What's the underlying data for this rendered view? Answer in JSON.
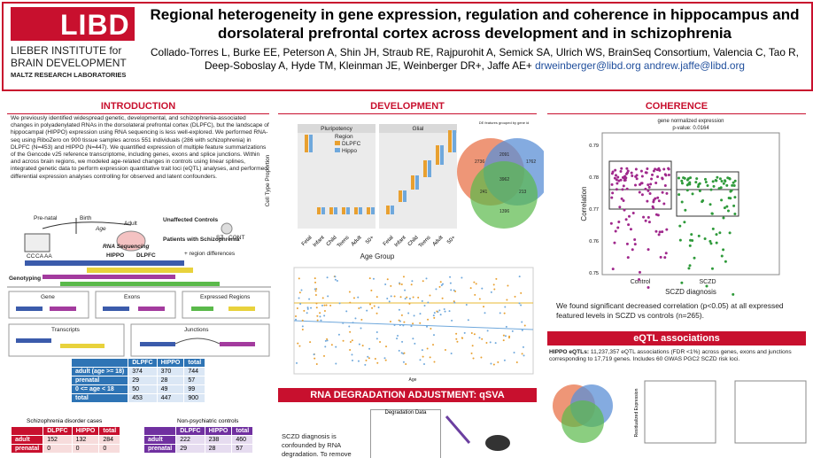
{
  "header": {
    "logo": {
      "mark": "LIBD",
      "line1": "LIEBER INSTITUTE for",
      "line2": "BRAIN DEVELOPMENT",
      "line3": "MALTZ RESEARCH LABORATORIES"
    },
    "title": "Regional heterogeneity in gene expression, regulation and coherence in hippocampus and dorsolateral prefrontal cortex across development and in schizophrenia",
    "authors": "Collado-Torres L, Burke EE, Peterson A, Shin JH, Straub RE, Rajpurohit A, Semick SA, Ulrich WS, BrainSeq Consortium, Valencia C, Tao R, Deep-Soboslay A, Hyde TM, Kleinman JE, Weinberger DR+, Jaffe AE+",
    "emails": "drweinberger@libd.org andrew.jaffe@libd.org"
  },
  "introduction": {
    "heading": "INTRODUCTION",
    "body": "We previously identified widespread genetic, developmental, and schizophrenia-associated changes in polyadenylated RNAs in the dorsolateral prefrontal cortex (DLPFC), but the landscape of hippocampal (HIPPO) expression using RNA sequencing is less well-explored. We performed RNA-seq using RiboZero on 900 tissue samples across 551 individuals (286 with schizophrenia) in DLPFC (N=453) and HIPPO (N=447). We quantified expression of multiple feature summarizations of the Gencode v25 reference transcriptome, including genes, exons and splice junctions. Within and across brain regions, we modeled age-related changes in controls using linear splines, integrated genetic data to perform expression quantitative trait loci (eQTL) analyses, and performed differential expression analyses controlling for observed and latent confounders.",
    "diagram": {
      "prenatal": "Pre-natal",
      "birth": "Birth",
      "age": "Age",
      "adult": "Adult",
      "hippo": "HIPPO",
      "dlpfc": "DLPFC",
      "controls": "Unaffected Controls",
      "patients": "Patients with Schizophrenia",
      "regions": "+ region differences",
      "rnaseq": "RNA Sequencing",
      "genotyping": "Genotyping",
      "genotypes": [
        "CC",
        "CA",
        "AA"
      ],
      "groups": [
        "SZ",
        "CONT"
      ],
      "features": [
        "Gene",
        "Exons",
        "Expressed Regions",
        "Transcripts",
        "Junctions"
      ]
    },
    "table": {
      "header": [
        "DLPFC",
        "HIPPO",
        "total"
      ],
      "rows": [
        [
          "adult (age >= 18)",
          "374",
          "370",
          "744"
        ],
        [
          "prenatal",
          "29",
          "28",
          "57"
        ],
        [
          "0 <= age < 18",
          "50",
          "49",
          "99"
        ],
        [
          "total",
          "453",
          "447",
          "900"
        ]
      ]
    },
    "cases_table": {
      "title": "Schizophrenia disorder cases",
      "header": [
        "DLPFC",
        "HIPPO",
        "total"
      ],
      "rows": [
        [
          "adult",
          "152",
          "132",
          "284"
        ],
        [
          "prenatal",
          "0",
          "0",
          "0"
        ]
      ]
    },
    "controls_table": {
      "title": "Non-psychiatric controls",
      "header": [
        "DLPFC",
        "HIPPO",
        "total"
      ],
      "rows": [
        [
          "adult",
          "222",
          "238",
          "460"
        ],
        [
          "prenatal",
          "29",
          "28",
          "57"
        ]
      ]
    }
  },
  "development": {
    "heading": "DEVELOPMENT",
    "panels": [
      "Pluripotency",
      "Glial"
    ],
    "legend_title": "Region",
    "legend": [
      "DLPFC",
      "Hippo"
    ],
    "ylabel": "Cell Type Proportion",
    "age_groups": [
      "Fetal",
      "Infant",
      "Child",
      "Teens",
      "Adult",
      "50+"
    ],
    "xlabel": "Age Group",
    "venn_title": "DE features grouped by gene id",
    "venn": [
      "2736",
      "2091",
      "1762",
      "3962",
      "241",
      "213",
      "1396"
    ],
    "lower_xlabel": "Age"
  },
  "qsva": {
    "heading": "RNA DEGRADATION ADJUSTMENT: qSVA",
    "body": "SCZD diagnosis is confounded by RNA degradation. To remove",
    "figure_label": "Degradation Data"
  },
  "coherence": {
    "heading": "COHERENCE",
    "plot_title": "gene normalized expression",
    "pvalue": "p-value: 0.0164",
    "ylabel": "Correlation",
    "yticks": [
      "0.79",
      "0.78",
      "0.77",
      "0.76",
      "0.75"
    ],
    "groups": [
      "Control",
      "SCZD"
    ],
    "xlabel": "SCZD diagnosis",
    "body": "We found significant decreased correlation (p<0.05) at all expressed featured levels in SCZD vs controls (n=265)."
  },
  "eqtl": {
    "heading": "eQTL associations",
    "lead": "HIPPO eQTLs:",
    "body": "11,237,357 eQTL associations (FDR <1%) across genes, exons and junctions corresponding to 17,719 genes. Includes 60 GWAS PGC2 SCZD risk loci.",
    "xlabel": "Residualized Expression"
  }
}
